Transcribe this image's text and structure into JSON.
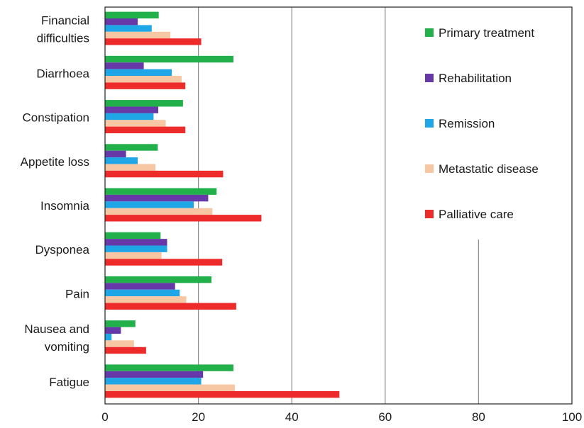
{
  "chart_data": {
    "type": "bar",
    "orientation": "horizontal",
    "categories": [
      "Fatigue",
      "Nausea and vomiting",
      "Pain",
      "Dysponea",
      "Insomnia",
      "Appetite loss",
      "Constipation",
      "Diarrhoea",
      "Financial difficulties"
    ],
    "category_lines": [
      [
        "Fatigue"
      ],
      [
        "Nausea and",
        "vomiting"
      ],
      [
        "Pain"
      ],
      [
        "Dysponea"
      ],
      [
        "Insomnia"
      ],
      [
        "Appetite loss"
      ],
      [
        "Constipation"
      ],
      [
        "Diarrhoea"
      ],
      [
        "Financial",
        "difficulties"
      ]
    ],
    "series": [
      {
        "name": "Primary treatment",
        "color": "#22b04b",
        "values": [
          27.5,
          6.5,
          22.8,
          11.9,
          23.9,
          11.3,
          16.7,
          27.5,
          11.5
        ]
      },
      {
        "name": "Rehabilitation",
        "color": "#6638a8",
        "values": [
          21.0,
          3.4,
          15.0,
          13.3,
          22.1,
          4.5,
          11.4,
          8.3,
          7.0
        ]
      },
      {
        "name": "Remission",
        "color": "#1ea6e6",
        "values": [
          20.6,
          1.4,
          16.0,
          13.3,
          19.0,
          7.0,
          10.4,
          14.3,
          10.0
        ]
      },
      {
        "name": "Metastatic disease",
        "color": "#f7c6a3",
        "values": [
          27.8,
          6.2,
          17.4,
          12.1,
          23.0,
          10.8,
          13.0,
          16.4,
          14.0
        ]
      },
      {
        "name": "Palliative care",
        "color": "#ee2b2b",
        "values": [
          50.2,
          8.8,
          28.1,
          25.1,
          33.5,
          25.3,
          17.2,
          17.2,
          20.6
        ]
      }
    ],
    "xlim": [
      0,
      100
    ],
    "xticks": [
      0,
      20,
      40,
      60,
      80,
      100
    ],
    "xgrid": true,
    "legend_position": "right"
  }
}
